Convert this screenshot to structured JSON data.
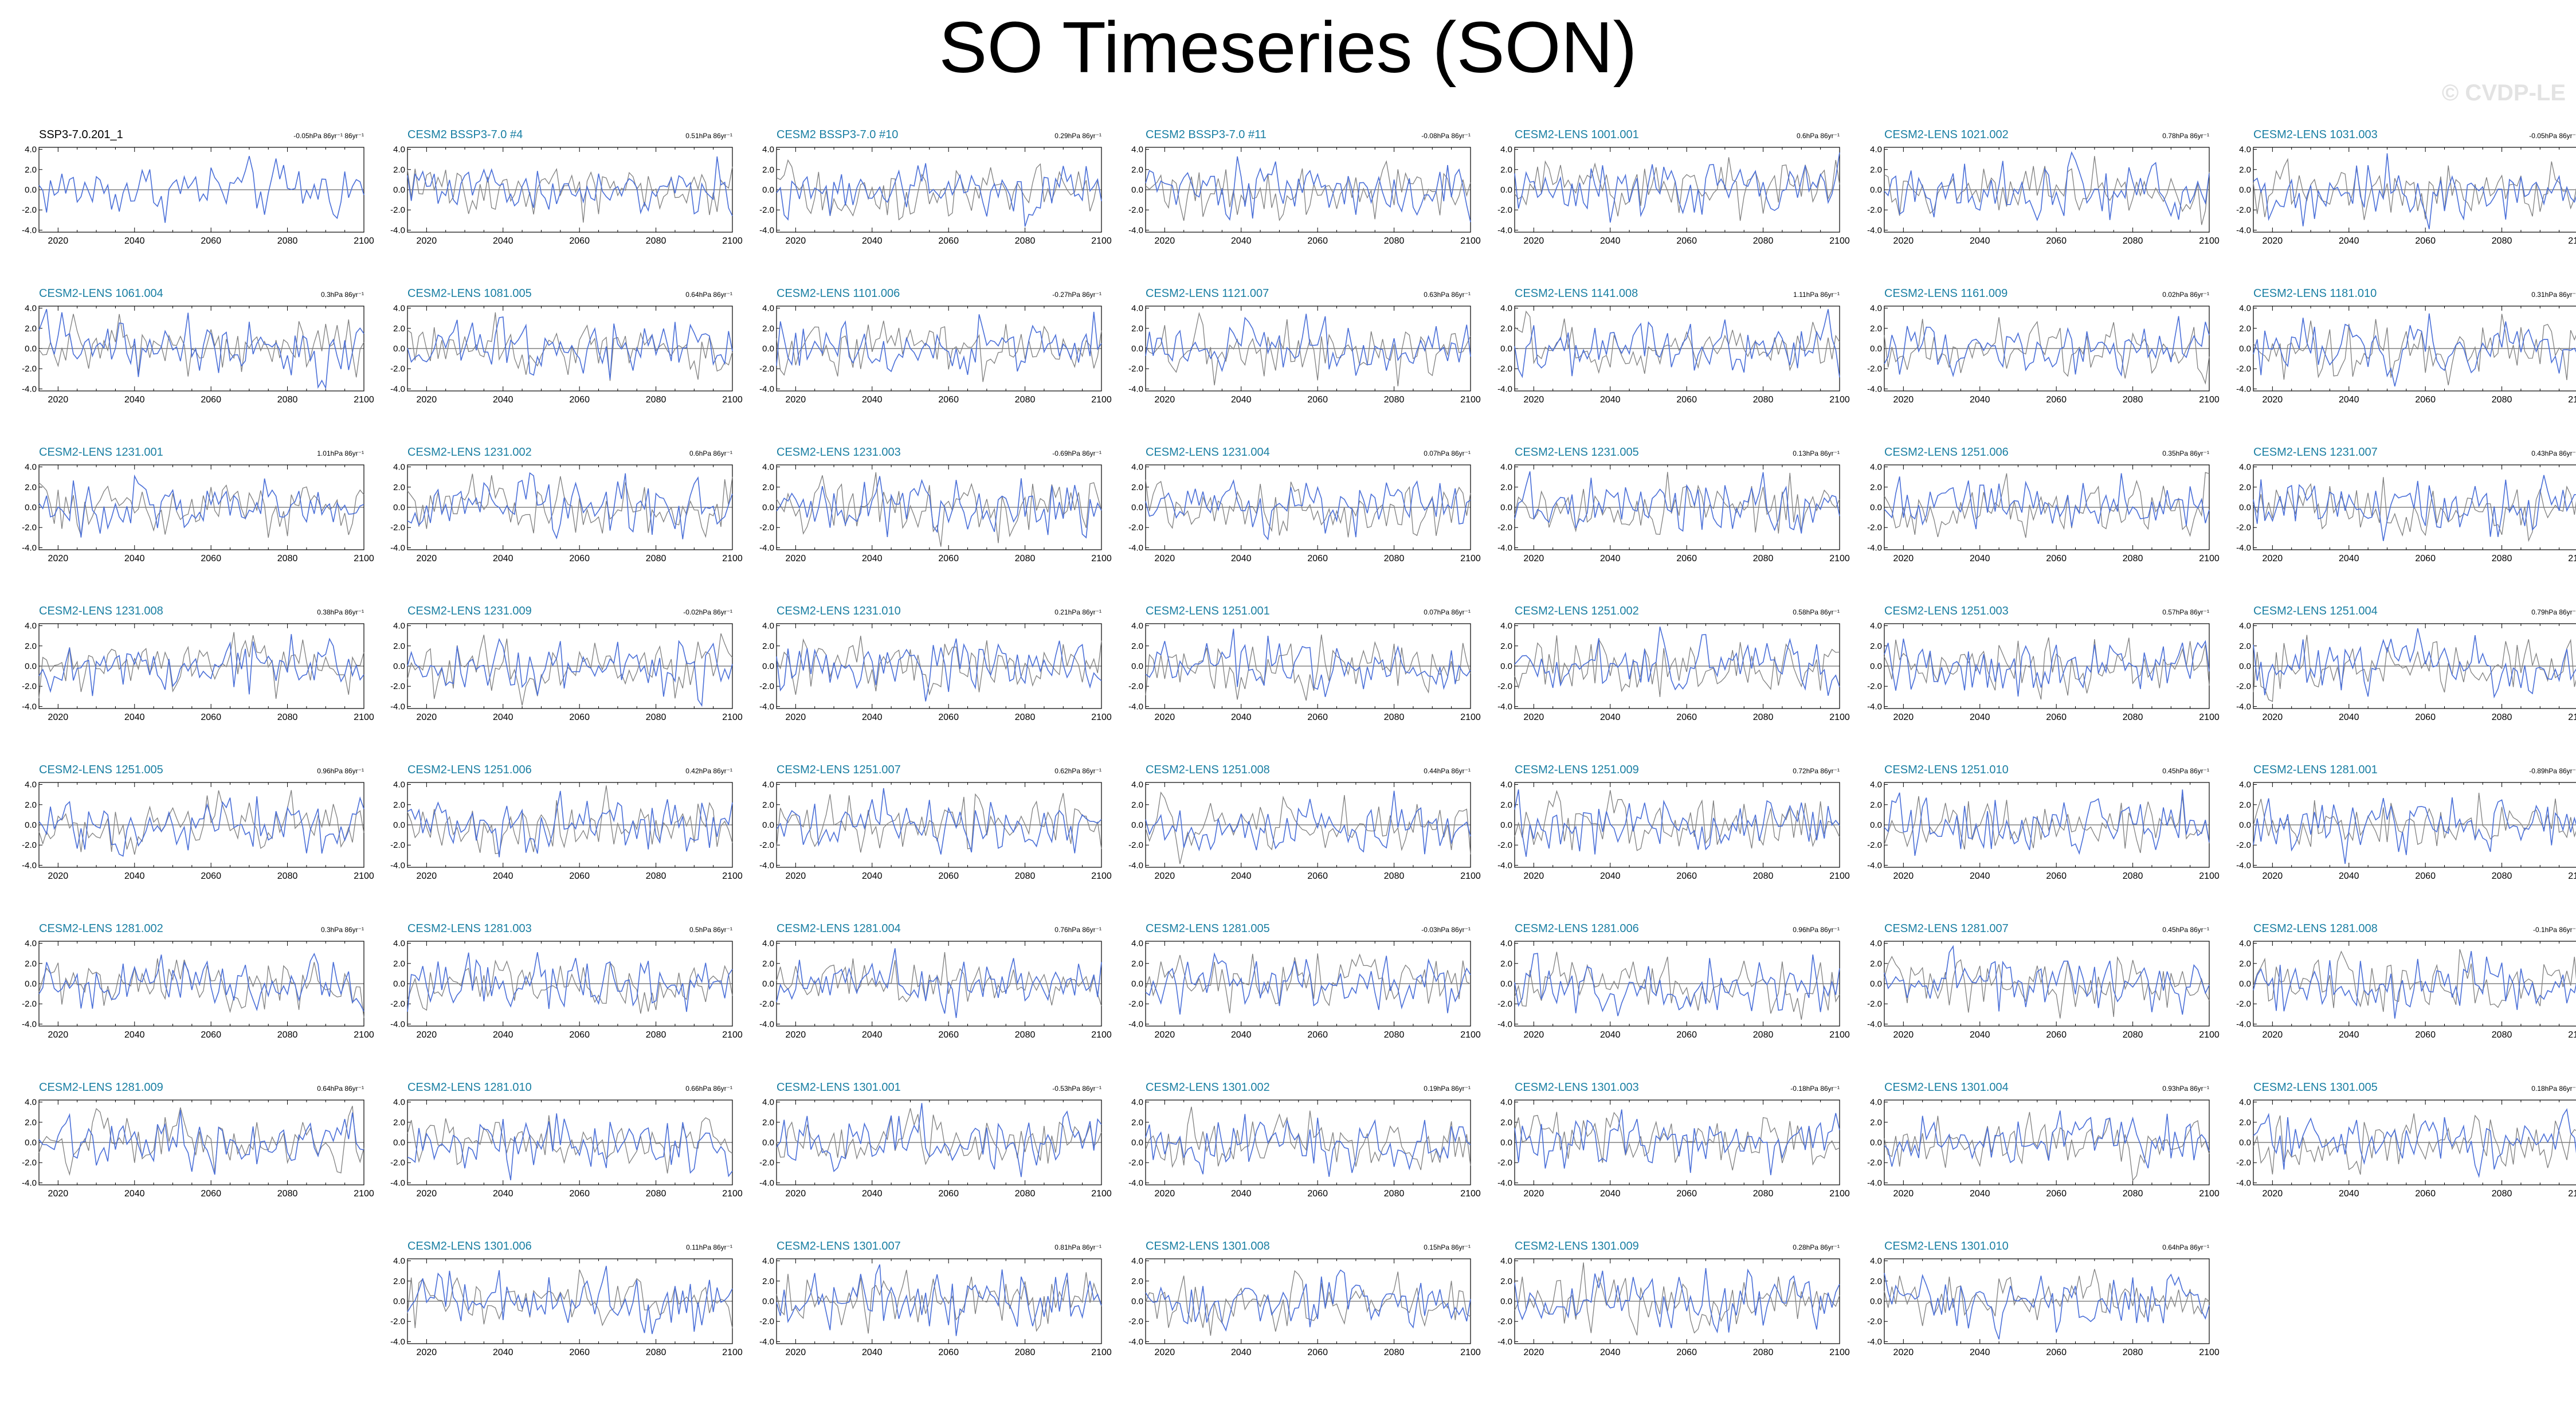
{
  "title": "SO Timeseries (SON)",
  "watermark": "© CVDP-LE",
  "colors": {
    "ensemble_line": "#4a6fd8",
    "observation_line": "#7f7f7f",
    "member_title": "#1a7fa3",
    "obs_title": "#000000",
    "watermark": "#e3e3e3"
  },
  "chart_data": {
    "type": "line",
    "grid_columns": 7,
    "x_range": [
      2015,
      2100
    ],
    "x_ticks": [
      "2020",
      "2040",
      "2060",
      "2080",
      "2100"
    ],
    "y_ticks": [
      "4.0",
      "2.0",
      "0.0",
      "-2.0",
      "-4.0"
    ],
    "y_range": [
      -4.2,
      4.2
    ],
    "series_colors": {
      "member": "#4a6fd8",
      "reference": "#7f7f7f"
    },
    "panels": [
      {
        "title": "SSP3-7.0.201_1",
        "trend": "-0.05hPa 86yr⁻¹ 86yr⁻¹",
        "col": 0,
        "row": 0
      },
      {
        "title": "CESM2 BSSP3-7.0 #4",
        "trend": "0.51hPa 86yr⁻¹",
        "col": 1,
        "row": 0
      },
      {
        "title": "CESM2 BSSP3-7.0 #10",
        "trend": "0.29hPa 86yr⁻¹",
        "col": 2,
        "row": 0
      },
      {
        "title": "CESM2 BSSP3-7.0 #11",
        "trend": "-0.08hPa 86yr⁻¹",
        "col": 3,
        "row": 0
      },
      {
        "title": "CESM2-LENS 1001.001",
        "trend": "0.6hPa 86yr⁻¹",
        "col": 4,
        "row": 0
      },
      {
        "title": "CESM2-LENS 1021.002",
        "trend": "0.78hPa 86yr⁻¹",
        "col": 5,
        "row": 0
      },
      {
        "title": "CESM2-LENS 1031.003",
        "trend": "-0.05hPa 86yr⁻¹",
        "col": 6,
        "row": 0
      },
      {
        "title": "CESM2-LENS 1061.004",
        "trend": "0.3hPa 86yr⁻¹",
        "col": 0,
        "row": 1
      },
      {
        "title": "CESM2-LENS 1081.005",
        "trend": "0.64hPa 86yr⁻¹",
        "col": 1,
        "row": 1
      },
      {
        "title": "CESM2-LENS 1101.006",
        "trend": "-0.27hPa 86yr⁻¹",
        "col": 2,
        "row": 1
      },
      {
        "title": "CESM2-LENS 1121.007",
        "trend": "0.63hPa 86yr⁻¹",
        "col": 3,
        "row": 1
      },
      {
        "title": "CESM2-LENS 1141.008",
        "trend": "1.11hPa 86yr⁻¹",
        "col": 4,
        "row": 1
      },
      {
        "title": "CESM2-LENS 1161.009",
        "trend": "0.02hPa 86yr⁻¹",
        "col": 5,
        "row": 1
      },
      {
        "title": "CESM2-LENS 1181.010",
        "trend": "0.31hPa 86yr⁻¹",
        "col": 6,
        "row": 1
      },
      {
        "title": "CESM2-LENS 1231.001",
        "trend": "1.01hPa 86yr⁻¹",
        "col": 0,
        "row": 2
      },
      {
        "title": "CESM2-LENS 1231.002",
        "trend": "0.6hPa 86yr⁻¹",
        "col": 1,
        "row": 2
      },
      {
        "title": "CESM2-LENS 1231.003",
        "trend": "-0.69hPa 86yr⁻¹",
        "col": 2,
        "row": 2
      },
      {
        "title": "CESM2-LENS 1231.004",
        "trend": "0.07hPa 86yr⁻¹",
        "col": 3,
        "row": 2
      },
      {
        "title": "CESM2-LENS 1231.005",
        "trend": "0.13hPa 86yr⁻¹",
        "col": 4,
        "row": 2
      },
      {
        "title": "CESM2-LENS 1251.006",
        "trend": "0.35hPa 86yr⁻¹",
        "col": 5,
        "row": 2
      },
      {
        "title": "CESM2-LENS 1231.007",
        "trend": "0.43hPa 86yr⁻¹",
        "col": 6,
        "row": 2
      },
      {
        "title": "CESM2-LENS 1231.008",
        "trend": "0.38hPa 86yr⁻¹",
        "col": 0,
        "row": 3
      },
      {
        "title": "CESM2-LENS 1231.009",
        "trend": "-0.02hPa 86yr⁻¹",
        "col": 1,
        "row": 3
      },
      {
        "title": "CESM2-LENS 1231.010",
        "trend": "0.21hPa 86yr⁻¹",
        "col": 2,
        "row": 3
      },
      {
        "title": "CESM2-LENS 1251.001",
        "trend": "0.07hPa 86yr⁻¹",
        "col": 3,
        "row": 3
      },
      {
        "title": "CESM2-LENS 1251.002",
        "trend": "0.58hPa 86yr⁻¹",
        "col": 4,
        "row": 3
      },
      {
        "title": "CESM2-LENS 1251.003",
        "trend": "0.57hPa 86yr⁻¹",
        "col": 5,
        "row": 3
      },
      {
        "title": "CESM2-LENS 1251.004",
        "trend": "0.79hPa 86yr⁻¹",
        "col": 6,
        "row": 3
      },
      {
        "title": "CESM2-LENS 1251.005",
        "trend": "0.96hPa 86yr⁻¹",
        "col": 0,
        "row": 4
      },
      {
        "title": "CESM2-LENS 1251.006",
        "trend": "0.42hPa 86yr⁻¹",
        "col": 1,
        "row": 4
      },
      {
        "title": "CESM2-LENS 1251.007",
        "trend": "0.62hPa 86yr⁻¹",
        "col": 2,
        "row": 4
      },
      {
        "title": "CESM2-LENS 1251.008",
        "trend": "0.44hPa 86yr⁻¹",
        "col": 3,
        "row": 4
      },
      {
        "title": "CESM2-LENS 1251.009",
        "trend": "0.72hPa 86yr⁻¹",
        "col": 4,
        "row": 4
      },
      {
        "title": "CESM2-LENS 1251.010",
        "trend": "0.45hPa 86yr⁻¹",
        "col": 5,
        "row": 4
      },
      {
        "title": "CESM2-LENS 1281.001",
        "trend": "-0.89hPa 86yr⁻¹",
        "col": 6,
        "row": 4
      },
      {
        "title": "CESM2-LENS 1281.002",
        "trend": "0.3hPa 86yr⁻¹",
        "col": 0,
        "row": 5
      },
      {
        "title": "CESM2-LENS 1281.003",
        "trend": "0.5hPa 86yr⁻¹",
        "col": 1,
        "row": 5
      },
      {
        "title": "CESM2-LENS 1281.004",
        "trend": "0.76hPa 86yr⁻¹",
        "col": 2,
        "row": 5
      },
      {
        "title": "CESM2-LENS 1281.005",
        "trend": "-0.03hPa 86yr⁻¹",
        "col": 3,
        "row": 5
      },
      {
        "title": "CESM2-LENS 1281.006",
        "trend": "0.96hPa 86yr⁻¹",
        "col": 4,
        "row": 5
      },
      {
        "title": "CESM2-LENS 1281.007",
        "trend": "0.45hPa 86yr⁻¹",
        "col": 5,
        "row": 5
      },
      {
        "title": "CESM2-LENS 1281.008",
        "trend": "-0.1hPa 86yr⁻¹",
        "col": 6,
        "row": 5
      },
      {
        "title": "CESM2-LENS 1281.009",
        "trend": "0.64hPa 86yr⁻¹",
        "col": 0,
        "row": 6
      },
      {
        "title": "CESM2-LENS 1281.010",
        "trend": "0.66hPa 86yr⁻¹",
        "col": 1,
        "row": 6
      },
      {
        "title": "CESM2-LENS 1301.001",
        "trend": "-0.53hPa 86yr⁻¹",
        "col": 2,
        "row": 6
      },
      {
        "title": "CESM2-LENS 1301.002",
        "trend": "0.19hPa 86yr⁻¹",
        "col": 3,
        "row": 6
      },
      {
        "title": "CESM2-LENS 1301.003",
        "trend": "-0.18hPa 86yr⁻¹",
        "col": 4,
        "row": 6
      },
      {
        "title": "CESM2-LENS 1301.004",
        "trend": "0.93hPa 86yr⁻¹",
        "col": 5,
        "row": 6
      },
      {
        "title": "CESM2-LENS 1301.005",
        "trend": "0.18hPa 86yr⁻¹",
        "col": 6,
        "row": 6
      },
      {
        "title": "CESM2-LENS 1301.006",
        "trend": "0.11hPa 86yr⁻¹",
        "col": 1,
        "row": 7
      },
      {
        "title": "CESM2-LENS 1301.007",
        "trend": "0.81hPa 86yr⁻¹",
        "col": 2,
        "row": 7
      },
      {
        "title": "CESM2-LENS 1301.008",
        "trend": "0.15hPa 86yr⁻¹",
        "col": 3,
        "row": 7
      },
      {
        "title": "CESM2-LENS 1301.009",
        "trend": "0.28hPa 86yr⁻¹",
        "col": 4,
        "row": 7
      },
      {
        "title": "CESM2-LENS 1301.010",
        "trend": "0.64hPa 86yr⁻¹",
        "col": 5,
        "row": 7
      }
    ]
  }
}
